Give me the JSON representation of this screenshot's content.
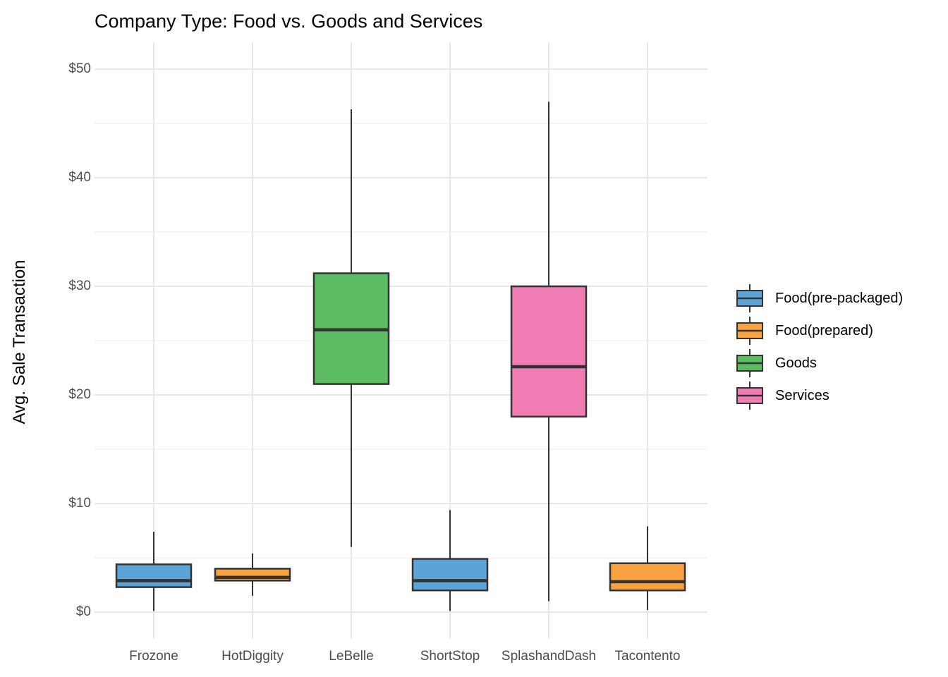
{
  "title": "Company Type: Food vs. Goods and Services",
  "y_axis": {
    "title": "Avg. Sale Transaction",
    "ticks": [
      {
        "label": "$0",
        "value": 0
      },
      {
        "label": "$10",
        "value": 10
      },
      {
        "label": "$20",
        "value": 20
      },
      {
        "label": "$30",
        "value": 30
      },
      {
        "label": "$40",
        "value": 40
      },
      {
        "label": "$50",
        "value": 50
      }
    ],
    "minor_tick_values": [
      5,
      15,
      25,
      35,
      45
    ]
  },
  "x_axis": {
    "categories": [
      "Frozone",
      "HotDiggity",
      "LeBelle",
      "ShortStop",
      "SplashandDash",
      "Tacontento"
    ]
  },
  "legend": {
    "items": [
      {
        "label": "Food(pre-packaged)",
        "color": "#5CA3D8"
      },
      {
        "label": "Food(prepared)",
        "color": "#F9A242"
      },
      {
        "label": "Goods",
        "color": "#5CBC62"
      },
      {
        "label": "Services",
        "color": "#F07EB4"
      }
    ]
  },
  "chart_data": {
    "type": "boxplot",
    "title": "Company Type: Food vs. Goods and Services",
    "xlabel": "",
    "ylabel": "Avg. Sale Transaction",
    "ylim": [
      0,
      50
    ],
    "grid": "on",
    "legend_position": "right",
    "categories": [
      "Frozone",
      "HotDiggity",
      "LeBelle",
      "ShortStop",
      "SplashandDash",
      "Tacontento"
    ],
    "boxes": [
      {
        "category": "Frozone",
        "group": "Food(pre-packaged)",
        "whisker_low": 0.1,
        "q1": 2.3,
        "median": 2.9,
        "q3": 4.4,
        "whisker_high": 7.4
      },
      {
        "category": "HotDiggity",
        "group": "Food(prepared)",
        "whisker_low": 1.5,
        "q1": 2.9,
        "median": 3.2,
        "q3": 4.0,
        "whisker_high": 5.4
      },
      {
        "category": "LeBelle",
        "group": "Goods",
        "whisker_low": 6.0,
        "q1": 21.0,
        "median": 26.0,
        "q3": 31.2,
        "whisker_high": 46.3
      },
      {
        "category": "ShortStop",
        "group": "Food(pre-packaged)",
        "whisker_low": 0.1,
        "q1": 2.0,
        "median": 2.9,
        "q3": 4.9,
        "whisker_high": 9.4
      },
      {
        "category": "SplashandDash",
        "group": "Services",
        "whisker_low": 1.0,
        "q1": 18.0,
        "median": 22.6,
        "q3": 30.0,
        "whisker_high": 47.0
      },
      {
        "category": "Tacontento",
        "group": "Food(prepared)",
        "whisker_low": 0.2,
        "q1": 2.0,
        "median": 2.8,
        "q3": 4.5,
        "whisker_high": 7.9
      }
    ]
  },
  "style_colors": {
    "box_outline": "#333333",
    "major_grid": "#E7E7E7",
    "minor_grid": "#F1F1F1",
    "tick_text": "#4d4d4d",
    "background": "#FFFFFF"
  }
}
